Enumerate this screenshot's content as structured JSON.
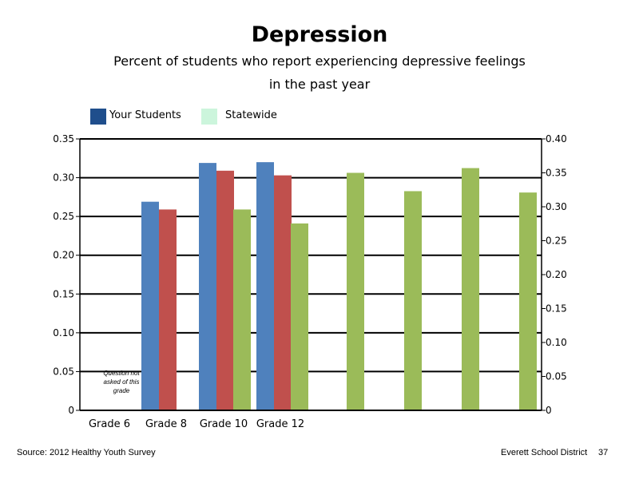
{
  "title": "Depression",
  "subtitle_line1": "Percent of students who report experiencing depressive feelings",
  "subtitle_line2": "in the past year",
  "legend": [
    {
      "label": "Your Students",
      "color": "#1F4E8C"
    },
    {
      "label": "Statewide",
      "color": "#CCF5DC"
    }
  ],
  "source": "Source: 2012 Healthy Youth Survey",
  "district": "Everett School District",
  "page_number": "37",
  "note_lines": [
    "Question not",
    "asked of this",
    "grade"
  ],
  "chart_data": {
    "type": "bar",
    "categories": [
      "Grade 6",
      "Grade 8",
      "Grade 10",
      "Grade 12"
    ],
    "left_axis": {
      "ylim": [
        0,
        0.35
      ],
      "ticks": [
        "0",
        "0.05",
        "0.10",
        "0.15",
        "0.20",
        "0.25",
        "0.30",
        "0.35"
      ]
    },
    "right_axis": {
      "ylim": [
        0,
        0.4
      ],
      "ticks": [
        "0",
        "0.05",
        "0.10",
        "0.15",
        "0.20",
        "0.25",
        "0.30",
        "0.35",
        "0.40"
      ]
    },
    "series": [
      {
        "color": "#4F81BD",
        "axis": "left",
        "values": [
          null,
          0.269,
          0.319,
          0.32
        ]
      },
      {
        "color": "#C0504D",
        "axis": "left",
        "values": [
          null,
          0.259,
          0.309,
          0.303
        ]
      },
      {
        "color": "#9BBB59",
        "axis": "left",
        "values": [
          null,
          null,
          0.259,
          0.241
        ]
      },
      {
        "color": "#9BBB59",
        "axis": "right",
        "values": [
          0.35,
          0.323,
          0.357,
          0.321
        ]
      }
    ],
    "grid": true
  }
}
